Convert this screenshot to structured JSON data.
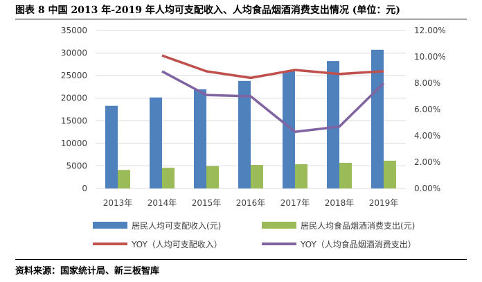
{
  "title": "图表 8 中国 2013 年-2019 年人均可支配收入、人均食品烟酒消费支出情况 (单位：元)",
  "source": "资料来源：国家统计局、新三板智库",
  "chart_data": {
    "type": "bar",
    "categories": [
      "2013年",
      "2014年",
      "2015年",
      "2016年",
      "2017年",
      "2018年",
      "2019年"
    ],
    "left_axis": {
      "ylim": [
        0,
        35000
      ],
      "ticks": [
        "0",
        "5000",
        "10000",
        "15000",
        "20000",
        "25000",
        "30000",
        "35000"
      ]
    },
    "right_axis": {
      "ylim": [
        0,
        12
      ],
      "ticks": [
        "0.00%",
        "2.00%",
        "4.00%",
        "6.00%",
        "8.00%",
        "10.00%",
        "12.00%"
      ]
    },
    "grid": true,
    "legend_placement": "bottom",
    "series": [
      {
        "name": "居民人均可支配收入(元)",
        "type": "bar",
        "axis": "left",
        "color": "#4f81bd",
        "values": [
          18311,
          20167,
          21966,
          23821,
          25974,
          28228,
          30733
        ]
      },
      {
        "name": "居民人均食品烟酒消费支出(元)",
        "type": "bar",
        "axis": "left",
        "color": "#9bbb59",
        "values": [
          4105,
          4579,
          4947,
          5210,
          5368,
          5684,
          6158
        ]
      },
      {
        "name": "YOY（人均可支配收入）",
        "type": "line",
        "axis": "right",
        "color": "#c0504d",
        "values": [
          null,
          10.1,
          8.9,
          8.4,
          9.0,
          8.7,
          8.9
        ]
      },
      {
        "name": "YOY（人均食品烟酒消费支出）",
        "type": "line",
        "axis": "right",
        "color": "#8064a2",
        "values": [
          null,
          8.9,
          7.1,
          7.0,
          4.3,
          4.7,
          8.0
        ]
      }
    ]
  }
}
